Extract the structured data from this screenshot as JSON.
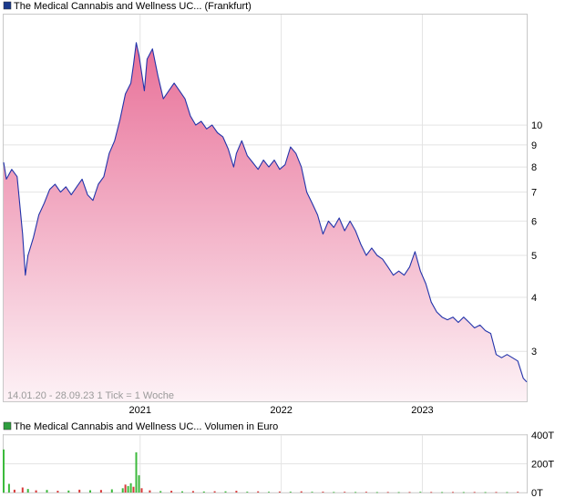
{
  "price_chart": {
    "title": "The Medical Cannabis and Wellness UC... (Frankfurt)",
    "note": "14.01.20 - 28.09.23   1 Tick = 1 Woche",
    "legend_color": "#1a3a8c"
  },
  "volume_chart": {
    "title": "The Medical Cannabis and Wellness UC... Volumen in Euro",
    "legend_color": "#2e9e3e"
  },
  "colors": {
    "line": "#2233aa",
    "area_top": "#e87098",
    "area_bottom": "#fdf2f6",
    "grid": "#e4e4e4",
    "vol_up": "#3cba3c",
    "vol_down": "#d83a3a"
  },
  "chart_data": [
    {
      "type": "area",
      "title": "The Medical Cannabis and Wellness UC... (Frankfurt)",
      "y_scale": "log",
      "ylim": [
        2.3,
        18
      ],
      "xlim": [
        "2020-01-14",
        "2023-09-28"
      ],
      "x_ticks": [
        {
          "label": "2021",
          "date": "2021-01-01"
        },
        {
          "label": "2022",
          "date": "2022-01-01"
        },
        {
          "label": "2023",
          "date": "2023-01-01"
        }
      ],
      "y_ticks": [
        3,
        4,
        5,
        6,
        7,
        8,
        9,
        10
      ],
      "grid": true,
      "series": [
        {
          "points": [
            [
              "2020-01-14",
              8.2
            ],
            [
              "2020-01-21",
              7.5
            ],
            [
              "2020-02-04",
              7.9
            ],
            [
              "2020-02-18",
              7.6
            ],
            [
              "2020-03-03",
              5.6
            ],
            [
              "2020-03-10",
              4.5
            ],
            [
              "2020-03-17",
              5.0
            ],
            [
              "2020-03-31",
              5.5
            ],
            [
              "2020-04-14",
              6.2
            ],
            [
              "2020-04-28",
              6.6
            ],
            [
              "2020-05-12",
              7.1
            ],
            [
              "2020-05-26",
              7.3
            ],
            [
              "2020-06-09",
              7.0
            ],
            [
              "2020-06-23",
              7.2
            ],
            [
              "2020-07-07",
              6.9
            ],
            [
              "2020-07-21",
              7.2
            ],
            [
              "2020-08-04",
              7.5
            ],
            [
              "2020-08-18",
              6.9
            ],
            [
              "2020-09-01",
              6.7
            ],
            [
              "2020-09-15",
              7.3
            ],
            [
              "2020-09-29",
              7.6
            ],
            [
              "2020-10-13",
              8.6
            ],
            [
              "2020-10-27",
              9.2
            ],
            [
              "2020-11-10",
              10.3
            ],
            [
              "2020-11-24",
              11.8
            ],
            [
              "2020-12-08",
              12.5
            ],
            [
              "2020-12-15",
              13.8
            ],
            [
              "2020-12-22",
              15.5
            ],
            [
              "2020-12-29",
              14.5
            ],
            [
              "2021-01-12",
              12.0
            ],
            [
              "2021-01-19",
              14.2
            ],
            [
              "2021-02-02",
              15.0
            ],
            [
              "2021-02-16",
              13.0
            ],
            [
              "2021-03-02",
              11.5
            ],
            [
              "2021-03-16",
              12.0
            ],
            [
              "2021-03-30",
              12.5
            ],
            [
              "2021-04-13",
              12.0
            ],
            [
              "2021-04-27",
              11.5
            ],
            [
              "2021-05-11",
              10.5
            ],
            [
              "2021-05-25",
              10.0
            ],
            [
              "2021-06-08",
              10.2
            ],
            [
              "2021-06-22",
              9.8
            ],
            [
              "2021-07-06",
              10.0
            ],
            [
              "2021-07-20",
              9.6
            ],
            [
              "2021-08-03",
              9.4
            ],
            [
              "2021-08-17",
              8.8
            ],
            [
              "2021-08-31",
              8.0
            ],
            [
              "2021-09-07",
              8.6
            ],
            [
              "2021-09-21",
              9.2
            ],
            [
              "2021-10-05",
              8.5
            ],
            [
              "2021-10-19",
              8.2
            ],
            [
              "2021-11-02",
              7.9
            ],
            [
              "2021-11-16",
              8.3
            ],
            [
              "2021-11-30",
              8.0
            ],
            [
              "2021-12-14",
              8.3
            ],
            [
              "2021-12-28",
              7.9
            ],
            [
              "2022-01-11",
              8.1
            ],
            [
              "2022-01-25",
              8.9
            ],
            [
              "2022-02-08",
              8.6
            ],
            [
              "2022-02-22",
              8.0
            ],
            [
              "2022-03-08",
              7.0
            ],
            [
              "2022-03-22",
              6.6
            ],
            [
              "2022-04-05",
              6.2
            ],
            [
              "2022-04-19",
              5.6
            ],
            [
              "2022-05-03",
              6.0
            ],
            [
              "2022-05-17",
              5.8
            ],
            [
              "2022-05-31",
              6.1
            ],
            [
              "2022-06-14",
              5.7
            ],
            [
              "2022-06-28",
              6.0
            ],
            [
              "2022-07-12",
              5.7
            ],
            [
              "2022-07-26",
              5.3
            ],
            [
              "2022-08-09",
              5.0
            ],
            [
              "2022-08-23",
              5.2
            ],
            [
              "2022-09-06",
              5.0
            ],
            [
              "2022-09-20",
              4.9
            ],
            [
              "2022-10-04",
              4.7
            ],
            [
              "2022-10-18",
              4.5
            ],
            [
              "2022-11-01",
              4.6
            ],
            [
              "2022-11-15",
              4.5
            ],
            [
              "2022-11-29",
              4.7
            ],
            [
              "2022-12-13",
              5.1
            ],
            [
              "2022-12-27",
              4.6
            ],
            [
              "2023-01-10",
              4.3
            ],
            [
              "2023-01-24",
              3.9
            ],
            [
              "2023-02-07",
              3.7
            ],
            [
              "2023-02-21",
              3.6
            ],
            [
              "2023-03-07",
              3.55
            ],
            [
              "2023-03-21",
              3.6
            ],
            [
              "2023-04-04",
              3.5
            ],
            [
              "2023-04-18",
              3.6
            ],
            [
              "2023-05-02",
              3.5
            ],
            [
              "2023-05-16",
              3.4
            ],
            [
              "2023-05-30",
              3.45
            ],
            [
              "2023-06-13",
              3.35
            ],
            [
              "2023-06-27",
              3.3
            ],
            [
              "2023-07-11",
              2.95
            ],
            [
              "2023-07-25",
              2.9
            ],
            [
              "2023-08-08",
              2.95
            ],
            [
              "2023-08-22",
              2.9
            ],
            [
              "2023-09-05",
              2.85
            ],
            [
              "2023-09-19",
              2.6
            ],
            [
              "2023-09-28",
              2.55
            ]
          ]
        }
      ]
    },
    {
      "type": "bar",
      "title": "The Medical Cannabis and Wellness UC... Volumen in Euro",
      "ylim": [
        0,
        400
      ],
      "y_ticks": [
        {
          "label": "0T",
          "value": 0
        },
        {
          "label": "200T",
          "value": 200
        },
        {
          "label": "400T",
          "value": 400
        }
      ],
      "xlim": [
        "2020-01-14",
        "2023-09-28"
      ],
      "grid": true,
      "series": [
        {
          "points": [
            [
              "2020-01-14",
              300,
              "up"
            ],
            [
              "2020-01-28",
              60,
              "up"
            ],
            [
              "2020-02-11",
              20,
              "down"
            ],
            [
              "2020-03-03",
              35,
              "down"
            ],
            [
              "2020-03-17",
              25,
              "up"
            ],
            [
              "2020-04-07",
              15,
              "down"
            ],
            [
              "2020-05-05",
              18,
              "up"
            ],
            [
              "2020-06-02",
              12,
              "down"
            ],
            [
              "2020-06-30",
              14,
              "up"
            ],
            [
              "2020-07-28",
              20,
              "down"
            ],
            [
              "2020-08-25",
              16,
              "up"
            ],
            [
              "2020-09-22",
              18,
              "down"
            ],
            [
              "2020-10-20",
              22,
              "up"
            ],
            [
              "2020-11-17",
              30,
              "up"
            ],
            [
              "2020-11-24",
              55,
              "down"
            ],
            [
              "2020-12-01",
              45,
              "up"
            ],
            [
              "2020-12-08",
              65,
              "up"
            ],
            [
              "2020-12-15",
              40,
              "down"
            ],
            [
              "2020-12-22",
              280,
              "up"
            ],
            [
              "2020-12-29",
              120,
              "up"
            ],
            [
              "2021-01-05",
              30,
              "down"
            ],
            [
              "2021-01-26",
              15,
              "down"
            ],
            [
              "2021-02-23",
              10,
              "up"
            ],
            [
              "2021-03-23",
              12,
              "down"
            ],
            [
              "2021-04-20",
              8,
              "up"
            ],
            [
              "2021-05-18",
              10,
              "down"
            ],
            [
              "2021-06-15",
              7,
              "up"
            ],
            [
              "2021-07-13",
              9,
              "down"
            ],
            [
              "2021-08-10",
              8,
              "up"
            ],
            [
              "2021-09-07",
              12,
              "down"
            ],
            [
              "2021-10-05",
              6,
              "up"
            ],
            [
              "2021-11-02",
              8,
              "down"
            ],
            [
              "2021-11-30",
              5,
              "up"
            ],
            [
              "2021-12-28",
              7,
              "down"
            ],
            [
              "2022-01-25",
              6,
              "up"
            ],
            [
              "2022-02-22",
              8,
              "down"
            ],
            [
              "2022-03-22",
              5,
              "up"
            ],
            [
              "2022-04-19",
              6,
              "down"
            ],
            [
              "2022-05-17",
              4,
              "up"
            ],
            [
              "2022-06-14",
              5,
              "down"
            ],
            [
              "2022-07-12",
              4,
              "up"
            ],
            [
              "2022-08-09",
              5,
              "down"
            ],
            [
              "2022-09-06",
              3,
              "up"
            ],
            [
              "2022-10-04",
              4,
              "down"
            ],
            [
              "2022-11-01",
              3,
              "up"
            ],
            [
              "2022-11-29",
              4,
              "down"
            ],
            [
              "2022-12-27",
              5,
              "up"
            ],
            [
              "2023-01-24",
              4,
              "down"
            ],
            [
              "2023-02-21",
              3,
              "up"
            ],
            [
              "2023-03-21",
              4,
              "down"
            ],
            [
              "2023-04-18",
              3,
              "up"
            ],
            [
              "2023-05-16",
              4,
              "down"
            ],
            [
              "2023-06-13",
              3,
              "up"
            ],
            [
              "2023-07-11",
              4,
              "down"
            ],
            [
              "2023-08-08",
              3,
              "up"
            ],
            [
              "2023-09-05",
              5,
              "down"
            ]
          ]
        }
      ]
    }
  ]
}
